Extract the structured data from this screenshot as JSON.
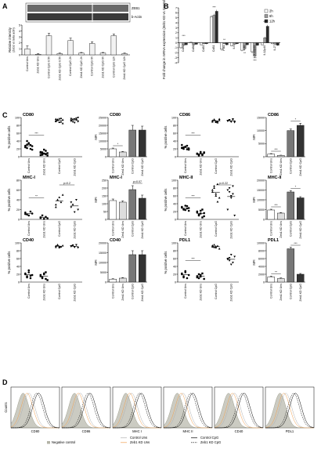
{
  "panel_letters": [
    "A",
    "B",
    "C",
    "D"
  ],
  "blot": {
    "bands": [
      "ZEB1",
      "b-Actin"
    ]
  },
  "chart_data": [
    {
      "id": "A",
      "type": "bar",
      "ylabel": "Relative intensity (Zeb1 vs beta actin)",
      "ylim": [
        0,
        5
      ],
      "yticks": [
        0,
        1,
        2,
        3,
        4,
        5
      ],
      "categories": [
        "Control Uns",
        "Zeb1 KD Uns",
        "Control CpG 0.5h",
        "Zeb1 KD CpG 0.5h",
        "Control CpG 2h",
        "Zeb1 KD CpG 2h",
        "Control CpG 6h",
        "Zeb1 KD CpG 6h",
        "Control CpG 12h",
        "Zeb1 KD CpG 12h"
      ],
      "values": [
        1.0,
        0.1,
        3.2,
        0.2,
        2.4,
        0.3,
        1.9,
        0.3,
        3.2,
        0.2
      ],
      "errors": [
        0.5,
        0.1,
        0.4,
        0.1,
        0.4,
        0.1,
        0.3,
        0.1,
        0.3,
        0.1
      ]
    },
    {
      "id": "B",
      "type": "bar",
      "ylabel": "Fold change in mRNA expression (Zeb1 KD vs Control DCs)",
      "ylim": [
        -4,
        7
      ],
      "yticks": [
        -4,
        -3,
        -2,
        -1,
        0,
        1,
        2,
        3,
        4,
        5,
        6,
        7
      ],
      "categories": [
        "Cd80",
        "Cd86",
        "Cd83",
        "Cd81",
        "Pdl1",
        "Il-6",
        "Il-10",
        "Il-12p35",
        "Il-12p40",
        "Il-27"
      ],
      "series": [
        {
          "name": "2h",
          "values": [
            -1.0,
            0.1,
            -0.4,
            5.2,
            -1.3,
            -0.6,
            -1.5,
            -1.8,
            -0.4,
            -0.2
          ],
          "errors": [
            0.2,
            0.1,
            0.1,
            0.3,
            0.3,
            0.1,
            0.2,
            0.3,
            0.1,
            0.1
          ]
        },
        {
          "name": "6h",
          "values": [
            -0.5,
            -0.4,
            -0.2,
            5.5,
            -0.2,
            -0.3,
            -1.2,
            -2.7,
            1.0,
            -0.3
          ],
          "errors": [
            0.1,
            0.1,
            0.1,
            0.3,
            0.1,
            0.1,
            0.2,
            0.3,
            0.2,
            0.1
          ]
        },
        {
          "name": "12h",
          "values": [
            -0.4,
            -0.3,
            -0.2,
            6.3,
            -0.4,
            -0.2,
            -0.4,
            -0.5,
            3.3,
            -0.5
          ],
          "errors": [
            0.1,
            0.1,
            0.1,
            0.3,
            0.1,
            0.1,
            0.1,
            0.1,
            0.3,
            0.1
          ]
        }
      ],
      "annotations": [
        "***",
        "**",
        "***",
        "**",
        "***",
        "***",
        "***"
      ]
    },
    {
      "id": "C-CD80-pct",
      "type": "scatter",
      "title": "CD80",
      "ylabel": "% positive cells",
      "ylim": [
        0,
        100
      ],
      "yticks": [
        0,
        20,
        40,
        60,
        80,
        100
      ],
      "categories": [
        "Control Uns",
        "Zeb1 KD Uns",
        "Control CpG",
        "Zeb1 KD CpG"
      ],
      "groups": [
        [
          28,
          22,
          35,
          30,
          18,
          25,
          40,
          33,
          20,
          27,
          24,
          31
        ],
        [
          10,
          5,
          8,
          15,
          3,
          12,
          7,
          18,
          6,
          9,
          4,
          11
        ],
        [
          92,
          95,
          88,
          98,
          85,
          90,
          93,
          97,
          89,
          94,
          96
        ],
        [
          91,
          95,
          87,
          98,
          100,
          93,
          89,
          96,
          94,
          90,
          97
        ]
      ],
      "annotations": [
        "***"
      ]
    },
    {
      "id": "C-CD80-mfi",
      "type": "bar",
      "title": "CD80",
      "ylabel": "MFI",
      "ylim": [
        0,
        25000
      ],
      "yticks": [
        0,
        5000,
        10000,
        15000,
        20000,
        25000
      ],
      "categories": [
        "Control Uns",
        "Zeb1 KD Uns",
        "Control CpG",
        "Zeb1 KD CpG"
      ],
      "values": [
        5000,
        3000,
        17000,
        17000
      ],
      "errors": [
        500,
        400,
        3000,
        2500
      ],
      "annotations": [
        "*"
      ]
    },
    {
      "id": "C-CD86-pct",
      "type": "scatter",
      "title": "CD86",
      "ylabel": "% positive cells",
      "ylim": [
        0,
        100
      ],
      "yticks": [
        0,
        20,
        40,
        60,
        80,
        100
      ],
      "categories": [
        "Control Uns",
        "Zeb1 KD Uns",
        "Control CpG",
        "Zeb1 KD CpG"
      ],
      "groups": [
        [
          30,
          20,
          25,
          28,
          18,
          22,
          24,
          26,
          19,
          21,
          23
        ],
        [
          8,
          5,
          12,
          4,
          10,
          7,
          3,
          9,
          6,
          11
        ],
        [
          92,
          95,
          88,
          90,
          93,
          89,
          94,
          91,
          87,
          96
        ],
        [
          91,
          93,
          90,
          95,
          88,
          92,
          94,
          89,
          96,
          90
        ]
      ],
      "annotations": [
        "***"
      ]
    },
    {
      "id": "C-CD86-mfi",
      "type": "bar",
      "title": "CD86",
      "ylabel": "MFI",
      "ylim": [
        0,
        15000
      ],
      "yticks": [
        0,
        5000,
        10000,
        15000
      ],
      "categories": [
        "Control Uns",
        "Zeb1 KD Uns",
        "Control CpG",
        "Zeb1 KD CpG"
      ],
      "values": [
        1000,
        500,
        10000,
        12000
      ],
      "errors": [
        200,
        100,
        600,
        800
      ],
      "annotations": [
        "***",
        "*"
      ]
    },
    {
      "id": "C-MHCI-pct",
      "type": "scatter",
      "title": "MHC-I",
      "ylabel": "% positive cells",
      "ylim": [
        0,
        80
      ],
      "yticks": [
        0,
        20,
        40,
        60,
        80
      ],
      "categories": [
        "Control Uns",
        "Zeb1 KD Uns",
        "Control CpG",
        "Zeb1 KD CpG"
      ],
      "groups": [
        [
          14,
          10,
          8,
          16,
          12,
          11
        ],
        [
          3,
          8,
          1,
          5,
          2,
          4
        ],
        [
          30,
          40,
          45,
          35,
          50,
          25
        ],
        [
          25,
          30,
          15,
          40,
          20,
          35
        ]
      ],
      "annotations": [
        "**",
        "p=0.2"
      ]
    },
    {
      "id": "C-MHCI-mfi",
      "type": "bar",
      "title": "MHC-I",
      "ylabel": "MFI",
      "ylim": [
        0,
        250
      ],
      "yticks": [
        0,
        50,
        100,
        150,
        200,
        250
      ],
      "categories": [
        "Control Uns",
        "Zeb1 KD Uns",
        "Control CpG",
        "Zeb1 KD CpG"
      ],
      "values": [
        120,
        110,
        190,
        135
      ],
      "errors": [
        10,
        8,
        25,
        20
      ],
      "annotations": [
        "p=0.07"
      ]
    },
    {
      "id": "C-MHCII-pct",
      "type": "scatter",
      "title": "MHC-II",
      "ylabel": "% positive cells",
      "ylim": [
        0,
        100
      ],
      "yticks": [
        0,
        20,
        40,
        60,
        80,
        100
      ],
      "categories": [
        "Control Uns",
        "Zeb1 KD Uns",
        "Control CpG",
        "Zeb1 KD CpG"
      ],
      "groups": [
        [
          30,
          25,
          35,
          28,
          22,
          32,
          26,
          24,
          34,
          29
        ],
        [
          20,
          10,
          15,
          25,
          8,
          18,
          12,
          22,
          5,
          16
        ],
        [
          70,
          85,
          60,
          90,
          55,
          75,
          80,
          65,
          45
        ],
        [
          75,
          80,
          60,
          85,
          10,
          25,
          70,
          55,
          65
        ]
      ],
      "annotations": [
        "***",
        "p=0.22"
      ]
    },
    {
      "id": "C-MHCII-mfi",
      "type": "bar",
      "title": "MHC-II",
      "ylabel": "MFI",
      "ylim": [
        0,
        20000
      ],
      "yticks": [
        0,
        5000,
        10000,
        15000,
        20000
      ],
      "categories": [
        "Control Uns",
        "Zeb1 KD Uns",
        "Control CpG",
        "Zeb1 KD CpG"
      ],
      "values": [
        4800,
        3200,
        14000,
        11000
      ],
      "errors": [
        400,
        300,
        700,
        600
      ],
      "annotations": [
        "***",
        "*"
      ]
    },
    {
      "id": "C-CD40-pct",
      "type": "scatter",
      "title": "CD40",
      "ylabel": "% positive cells",
      "ylim": [
        0,
        100
      ],
      "yticks": [
        0,
        20,
        40,
        60,
        80,
        100
      ],
      "categories": [
        "Control Uns",
        "Zeb1 KD Uns",
        "Control CpG",
        "Zeb1 KD CpG"
      ],
      "groups": [
        [
          20,
          15,
          25,
          10,
          18,
          22,
          12,
          30,
          16
        ],
        [
          15,
          10,
          20,
          25,
          5,
          18,
          12,
          22,
          8
        ],
        [
          92,
          95,
          88,
          90,
          93,
          89,
          94,
          91
        ],
        [
          91,
          93,
          90,
          95,
          88,
          92,
          94,
          89
        ]
      ]
    },
    {
      "id": "C-CD40-mfi",
      "type": "bar",
      "title": "CD40",
      "ylabel": "MFI",
      "ylim": [
        0,
        20000
      ],
      "yticks": [
        0,
        5000,
        10000,
        15000,
        20000
      ],
      "categories": [
        "Control Uns",
        "Zeb1 KD Uns",
        "Control CpG",
        "Zeb1 KD CpG"
      ],
      "values": [
        1500,
        2000,
        14000,
        14000
      ],
      "errors": [
        200,
        300,
        2000,
        2000
      ]
    },
    {
      "id": "C-PDL1-pct",
      "type": "scatter",
      "title": "PDL1",
      "ylabel": "% positive cells",
      "ylim": [
        0,
        100
      ],
      "yticks": [
        0,
        20,
        40,
        60,
        80,
        100
      ],
      "categories": [
        "Control Uns",
        "Zeb1 KD Uns",
        "Control CpG",
        "Zeb1 KD CpG"
      ],
      "groups": [
        [
          20,
          15,
          25,
          10,
          18,
          22,
          12,
          28
        ],
        [
          15,
          10,
          18,
          22,
          8,
          12,
          20,
          14
        ],
        [
          90,
          95,
          88,
          92,
          85,
          93,
          89,
          91
        ],
        [
          60,
          55,
          70,
          50,
          65,
          58,
          62,
          45
        ]
      ],
      "annotations": [
        "***"
      ]
    },
    {
      "id": "C-PDL1-mfi",
      "type": "bar",
      "title": "PDL1",
      "ylabel": "MFI",
      "ylim": [
        0,
        10000
      ],
      "yticks": [
        0,
        2000,
        4000,
        6000,
        8000,
        10000
      ],
      "categories": [
        "Control Uns",
        "Zeb1 KD Uns",
        "Control CpG",
        "Zeb1 KD CpG"
      ],
      "values": [
        1300,
        900,
        8500,
        2000
      ],
      "errors": [
        200,
        150,
        400,
        200
      ],
      "annotations": [
        "**",
        "***"
      ]
    },
    {
      "id": "D",
      "type": "histogram-overlay",
      "ylabel": "Counts",
      "panels": [
        "CD80",
        "CD86",
        "MHC I",
        "MHC II",
        "CD40",
        "PDL1"
      ],
      "legend": [
        "Negative control",
        "Control Uns",
        "Zeb1 KD Uns",
        "Control CpG",
        "Zeb1 KD CpG"
      ]
    }
  ],
  "colors": {
    "grey_dark": "#555555",
    "grey_mid": "#8a8a8a",
    "grey_light": "#e8e8e8",
    "bar_fill": "#dcdcdc",
    "orange": "#f0a050",
    "neg_control": "#a0a090",
    "black": "#000000"
  }
}
